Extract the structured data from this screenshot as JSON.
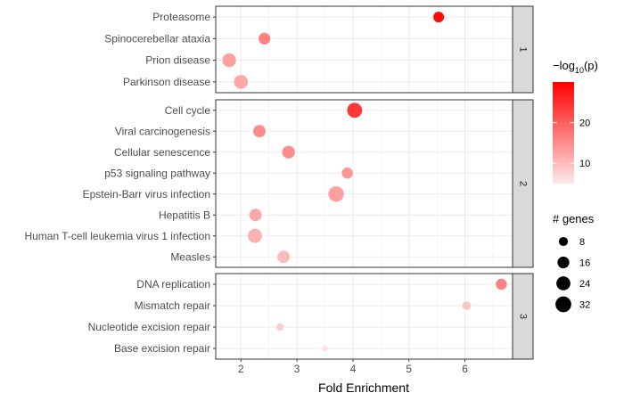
{
  "chart_data": {
    "type": "scatter",
    "xlabel": "Fold Enrichment",
    "xlim": [
      1.55,
      6.85
    ],
    "x_ticks": [
      2,
      3,
      4,
      5,
      6
    ],
    "colors": {
      "low": "#fbeaea",
      "high": "#ff0000",
      "panel_border": "#333333",
      "grid": "#ebebeb",
      "strip_fill": "#d9d9d9"
    },
    "color_legend": {
      "title_prefix": "−log",
      "title_sub": "10",
      "title_suffix": "(p)",
      "ticks": [
        10,
        20
      ],
      "range": [
        5,
        30
      ]
    },
    "size_legend": {
      "title": "# genes",
      "entries": [
        8,
        16,
        24,
        32
      ]
    },
    "panels": [
      {
        "label": "1",
        "points": [
          {
            "term": "Proteasome",
            "fold": 5.53,
            "genes": 11,
            "neglog10p": 29
          },
          {
            "term": "Spinocerebellar ataxia",
            "fold": 2.42,
            "genes": 14,
            "neglog10p": 16
          },
          {
            "term": "Prion disease",
            "fold": 1.79,
            "genes": 20,
            "neglog10p": 13
          },
          {
            "term": "Parkinson disease",
            "fold": 2.0,
            "genes": 21,
            "neglog10p": 12
          }
        ]
      },
      {
        "label": "2",
        "points": [
          {
            "term": "Cell cycle",
            "fold": 4.03,
            "genes": 25,
            "neglog10p": 24
          },
          {
            "term": "Viral carcinogenesis",
            "fold": 2.33,
            "genes": 16,
            "neglog10p": 15
          },
          {
            "term": "Cellular senescence",
            "fold": 2.85,
            "genes": 17,
            "neglog10p": 15
          },
          {
            "term": "p53 signaling pathway",
            "fold": 3.9,
            "genes": 12,
            "neglog10p": 14
          },
          {
            "term": "Epstein-Barr virus infection",
            "fold": 3.7,
            "genes": 27,
            "neglog10p": 13
          },
          {
            "term": "Hepatitis B",
            "fold": 2.26,
            "genes": 16,
            "neglog10p": 12
          },
          {
            "term": "Human T-cell leukemia virus 1 infection",
            "fold": 2.25,
            "genes": 22,
            "neglog10p": 11
          },
          {
            "term": "Measles",
            "fold": 2.76,
            "genes": 16,
            "neglog10p": 10
          }
        ]
      },
      {
        "label": "3",
        "points": [
          {
            "term": "DNA replication",
            "fold": 6.65,
            "genes": 12,
            "neglog10p": 16
          },
          {
            "term": "Mismatch repair",
            "fold": 6.03,
            "genes": 6,
            "neglog10p": 9
          },
          {
            "term": "Nucleotide excision repair",
            "fold": 2.7,
            "genes": 4,
            "neglog10p": 8
          },
          {
            "term": "Base excision repair",
            "fold": 3.5,
            "genes": 2,
            "neglog10p": 6
          }
        ]
      }
    ]
  }
}
